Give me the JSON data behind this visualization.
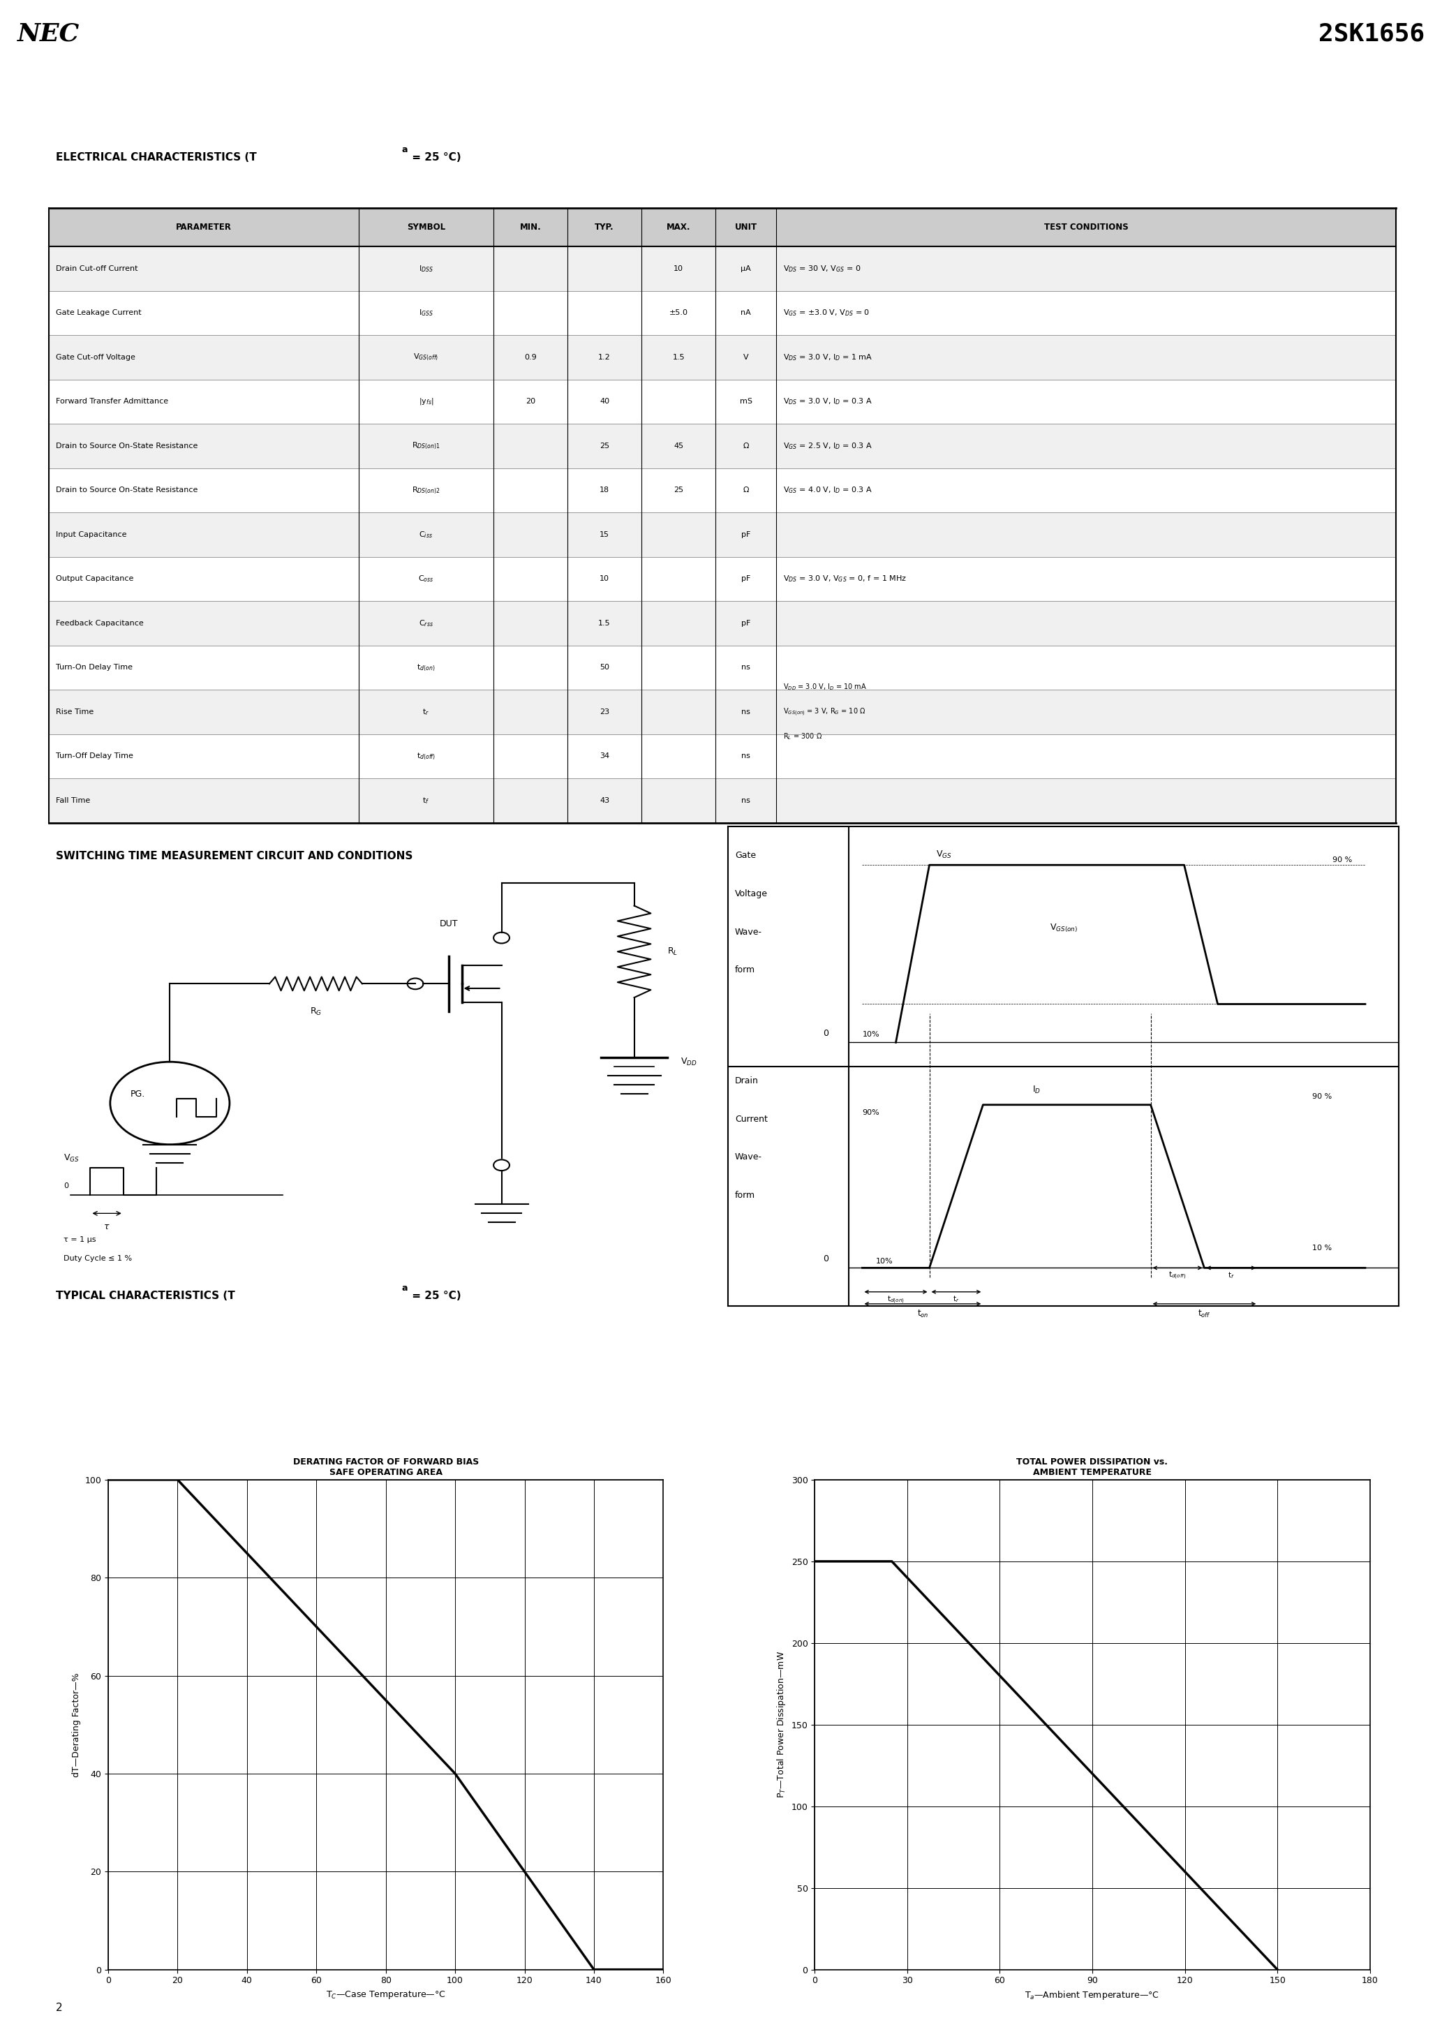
{
  "title_left": "NEC",
  "title_right": "2SK1656",
  "header_bg": "#aaaaaa",
  "table_headers": [
    "PARAMETER",
    "SYMBOL",
    "MIN.",
    "TYP.",
    "MAX.",
    "UNIT",
    "TEST CONDITIONS"
  ],
  "rows": [
    {
      "param": "Drain Cut-off Current",
      "sym": "I$_{DSS}$",
      "min": "",
      "typ": "",
      "max": "10",
      "unit": "μA",
      "cond": "V$_{DS}$ = 30 V, V$_{GS}$ = 0"
    },
    {
      "param": "Gate Leakage Current",
      "sym": "I$_{GSS}$",
      "min": "",
      "typ": "",
      "max": "±5.0",
      "unit": "nA",
      "cond": "V$_{GS}$ = ±3.0 V, V$_{DS}$ = 0"
    },
    {
      "param": "Gate Cut-off Voltage",
      "sym": "V$_{GS(off)}$",
      "min": "0.9",
      "typ": "1.2",
      "max": "1.5",
      "unit": "V",
      "cond": "V$_{DS}$ = 3.0 V, I$_{D}$ = 1 mA"
    },
    {
      "param": "Forward Transfer Admittance",
      "sym": "|y$_{fs}$|",
      "min": "20",
      "typ": "40",
      "max": "",
      "unit": "mS",
      "cond": "V$_{DS}$ = 3.0 V, I$_{D}$ = 0.3 A"
    },
    {
      "param": "Drain to Source On-State Resistance",
      "sym": "R$_{DS(on)1}$",
      "min": "",
      "typ": "25",
      "max": "45",
      "unit": "Ω",
      "cond": "V$_{GS}$ = 2.5 V, I$_{D}$ = 0.3 A"
    },
    {
      "param": "Drain to Source On-State Resistance",
      "sym": "R$_{DS(on)2}$",
      "min": "",
      "typ": "18",
      "max": "25",
      "unit": "Ω",
      "cond": "V$_{GS}$ = 4.0 V, I$_{D}$ = 0.3 A"
    },
    {
      "param": "Input Capacitance",
      "sym": "C$_{iss}$",
      "min": "",
      "typ": "15",
      "max": "",
      "unit": "pF",
      "cond": ""
    },
    {
      "param": "Output Capacitance",
      "sym": "C$_{oss}$",
      "min": "",
      "typ": "10",
      "max": "",
      "unit": "pF",
      "cond": "V$_{DS}$ = 3.0 V, V$_{GS}$ = 0, f = 1 MHz"
    },
    {
      "param": "Feedback Capacitance",
      "sym": "C$_{rss}$",
      "min": "",
      "typ": "1.5",
      "max": "",
      "unit": "pF",
      "cond": ""
    },
    {
      "param": "Turn-On Delay Time",
      "sym": "t$_{d(on)}$",
      "min": "",
      "typ": "50",
      "max": "",
      "unit": "ns",
      "cond": ""
    },
    {
      "param": "Rise Time",
      "sym": "t$_{r}$",
      "min": "",
      "typ": "23",
      "max": "",
      "unit": "ns",
      "cond": "V$_{DD}$ = 3.0 V, I$_{D}$ = 10 mA\nV$_{GS(on)}$ = 3 V, R$_{G}$ = 10 Ω\nR$_{L}$ = 300 Ω"
    },
    {
      "param": "Turn-Off Delay Time",
      "sym": "t$_{d(off)}$",
      "min": "",
      "typ": "34",
      "max": "",
      "unit": "ns",
      "cond": ""
    },
    {
      "param": "Fall Time",
      "sym": "t$_{f}$",
      "min": "",
      "typ": "43",
      "max": "",
      "unit": "ns",
      "cond": ""
    }
  ],
  "graph1_line_x": [
    0,
    20,
    100,
    140,
    160
  ],
  "graph1_line_y": [
    100,
    100,
    40,
    0,
    0
  ],
  "graph2_line_x": [
    0,
    25,
    150,
    150
  ],
  "graph2_line_y": [
    250,
    250,
    0,
    0
  ]
}
